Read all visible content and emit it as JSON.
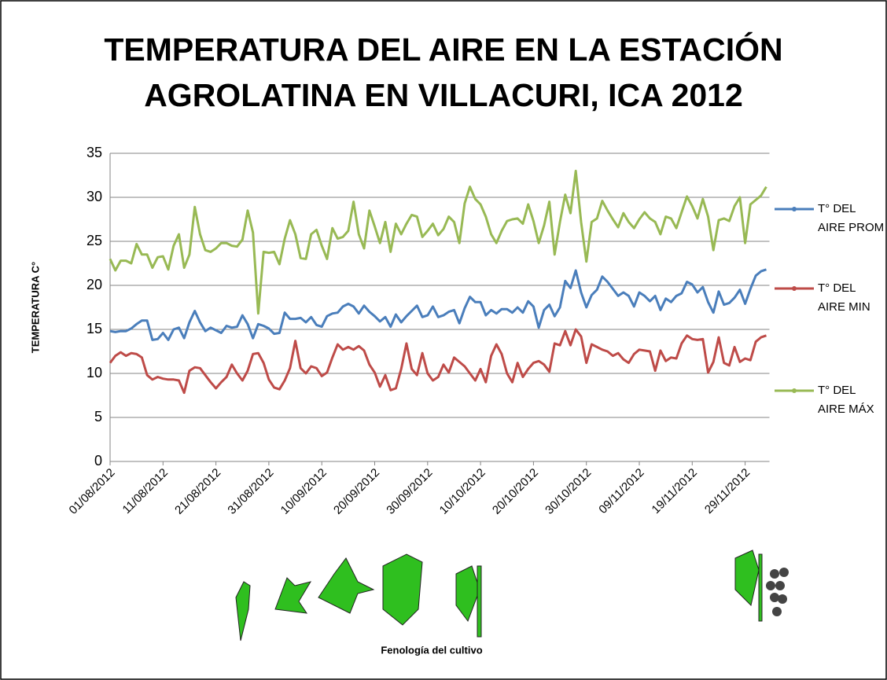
{
  "chart_data": {
    "type": "line",
    "title": [
      "TEMPERATURA DEL AIRE EN LA ESTACIÓN",
      "AGROLATINA EN VILLACURI, ICA 2012"
    ],
    "y_label": "TEMPERATURA C°",
    "caption": "Fenología del cultivo",
    "categories": [
      "01/08/2012",
      null,
      null,
      null,
      null,
      null,
      null,
      null,
      null,
      null,
      "11/08/2012",
      null,
      null,
      null,
      null,
      null,
      null,
      null,
      null,
      null,
      "21/08/2012",
      null,
      null,
      null,
      null,
      null,
      null,
      null,
      null,
      null,
      "31/08/2012",
      null,
      null,
      null,
      null,
      null,
      null,
      null,
      null,
      null,
      "10/09/2012",
      null,
      null,
      null,
      null,
      null,
      null,
      null,
      null,
      null,
      "20/09/2012",
      null,
      null,
      null,
      null,
      null,
      null,
      null,
      null,
      null,
      "30/09/2012",
      null,
      null,
      null,
      null,
      null,
      null,
      null,
      null,
      null,
      "10/10/2012",
      null,
      null,
      null,
      null,
      null,
      null,
      null,
      null,
      null,
      "20/10/2012",
      null,
      null,
      null,
      null,
      null,
      null,
      null,
      null,
      null,
      "30/10/2012",
      null,
      null,
      null,
      null,
      null,
      null,
      null,
      null,
      null,
      "09/11/2012",
      null,
      null,
      null,
      null,
      null,
      null,
      null,
      null,
      null,
      "19/11/2012",
      null,
      null,
      null,
      null,
      null,
      null,
      null,
      null,
      null,
      "29/11/2012",
      null,
      null,
      null,
      null
    ],
    "series": [
      {
        "name": "T° DEL AIRE PROM",
        "color": "#4a7ebb",
        "values": [
          14.8,
          14.7,
          14.8,
          14.8,
          15.1,
          15.6,
          16,
          16,
          13.8,
          13.9,
          14.6,
          13.8,
          15,
          15.2,
          14,
          15.8,
          17.1,
          15.8,
          14.8,
          15.2,
          14.9,
          14.6,
          15.4,
          15.2,
          15.3,
          16.6,
          15.6,
          14,
          15.6,
          15.4,
          15.1,
          14.5,
          14.6,
          16.9,
          16.2,
          16.2,
          16.3,
          15.8,
          16.4,
          15.5,
          15.3,
          16.5,
          16.8,
          16.9,
          17.6,
          17.9,
          17.6,
          16.8,
          17.7,
          17,
          16.5,
          15.9,
          16.4,
          15.3,
          16.7,
          15.8,
          16.5,
          17.1,
          17.7,
          16.4,
          16.6,
          17.6,
          16.4,
          16.6,
          17,
          17.2,
          15.7,
          17.4,
          18.7,
          18.1,
          18.1,
          16.6,
          17.2,
          16.8,
          17.3,
          17.3,
          16.9,
          17.5,
          16.9,
          18.2,
          17.6,
          15.2,
          17.2,
          17.8,
          16.5,
          17.5,
          20.5,
          19.7,
          21.7,
          19.2,
          17.5,
          18.9,
          19.5,
          21,
          20.4,
          19.6,
          18.8,
          19.2,
          18.8,
          17.6,
          19.2,
          18.8,
          18.2,
          18.8,
          17.2,
          18.5,
          18.1,
          18.8,
          19.1,
          20.4,
          20.1,
          19.2,
          19.8,
          18.1,
          16.9,
          19.3,
          17.8,
          18,
          18.6,
          19.5,
          17.9,
          19.6,
          21.1,
          21.6,
          21.8
        ]
      },
      {
        "name": "T° DEL AIRE MIN",
        "color": "#be4b48",
        "values": [
          11.2,
          12,
          12.4,
          12,
          12.3,
          12.2,
          11.8,
          9.8,
          9.3,
          9.6,
          9.4,
          9.3,
          9.3,
          9.2,
          7.8,
          10.3,
          10.7,
          10.6,
          9.8,
          9,
          8.3,
          9,
          9.6,
          11,
          10,
          9.2,
          10.3,
          12.2,
          12.3,
          11.2,
          9.3,
          8.4,
          8.2,
          9.2,
          10.6,
          13.7,
          10.6,
          10,
          10.8,
          10.6,
          9.7,
          10.1,
          11.8,
          13.3,
          12.7,
          13,
          12.7,
          13.1,
          12.6,
          11,
          10.1,
          8.5,
          9.8,
          8.1,
          8.3,
          10.5,
          13.4,
          10.5,
          9.8,
          12.3,
          10,
          9.2,
          9.6,
          11,
          10.1,
          11.8,
          11.3,
          10.8,
          10,
          9.2,
          10.5,
          9,
          12,
          13.3,
          12.2,
          10,
          9,
          11.2,
          9.6,
          10.5,
          11.2,
          11.4,
          11,
          10.2,
          13.4,
          13.2,
          14.8,
          13.2,
          15,
          14.2,
          11.2,
          13.3,
          13,
          12.7,
          12.5,
          12,
          12.3,
          11.6,
          11.2,
          12.2,
          12.7,
          12.6,
          12.5,
          10.3,
          12.6,
          11.4,
          11.8,
          11.7,
          13.4,
          14.3,
          13.9,
          13.8,
          13.9,
          10.1,
          11.3,
          14.1,
          11.2,
          10.9,
          13,
          11.3,
          11.7,
          11.5,
          13.6,
          14.1,
          14.3
        ]
      },
      {
        "name": "T° DEL AIRE MÁX",
        "color": "#98b954",
        "values": [
          23,
          21.7,
          22.8,
          22.8,
          22.5,
          24.7,
          23.5,
          23.5,
          22,
          23.2,
          23.3,
          21.8,
          24.5,
          25.8,
          22,
          23.5,
          28.9,
          25.8,
          24,
          23.8,
          24.2,
          24.8,
          24.8,
          24.5,
          24.4,
          25.2,
          28.5,
          26,
          16.8,
          23.8,
          23.7,
          23.8,
          22.4,
          25.3,
          27.4,
          25.8,
          23.1,
          23,
          25.8,
          26.3,
          24.5,
          23,
          26.5,
          25.3,
          25.5,
          26.2,
          29.5,
          25.8,
          24.2,
          28.5,
          26.7,
          24.8,
          27.2,
          23.8,
          27,
          25.8,
          27,
          28,
          27.8,
          25.5,
          26.2,
          27,
          25.7,
          26.4,
          27.8,
          27.2,
          24.8,
          29.3,
          31.2,
          29.8,
          29.2,
          27.8,
          25.8,
          24.8,
          26.2,
          27.3,
          27.5,
          27.6,
          27,
          29.2,
          27.3,
          24.8,
          26.8,
          29.5,
          23.5,
          27.2,
          30.3,
          28.2,
          33,
          27.2,
          22.7,
          27.2,
          27.6,
          29.6,
          28.5,
          27.5,
          26.6,
          28.2,
          27.2,
          26.5,
          27.5,
          28.3,
          27.6,
          27.2,
          25.8,
          27.8,
          27.6,
          26.5,
          28.3,
          30.1,
          29,
          27.6,
          29.8,
          27.8,
          24,
          27.4,
          27.6,
          27.3,
          29,
          30,
          24.8,
          29.2,
          29.7,
          30.2,
          31.2
        ]
      }
    ],
    "ylim": [
      0,
      35
    ],
    "yticks": [
      0,
      5,
      10,
      15,
      20,
      25,
      30,
      35
    ],
    "grid": true,
    "legend": "right"
  }
}
